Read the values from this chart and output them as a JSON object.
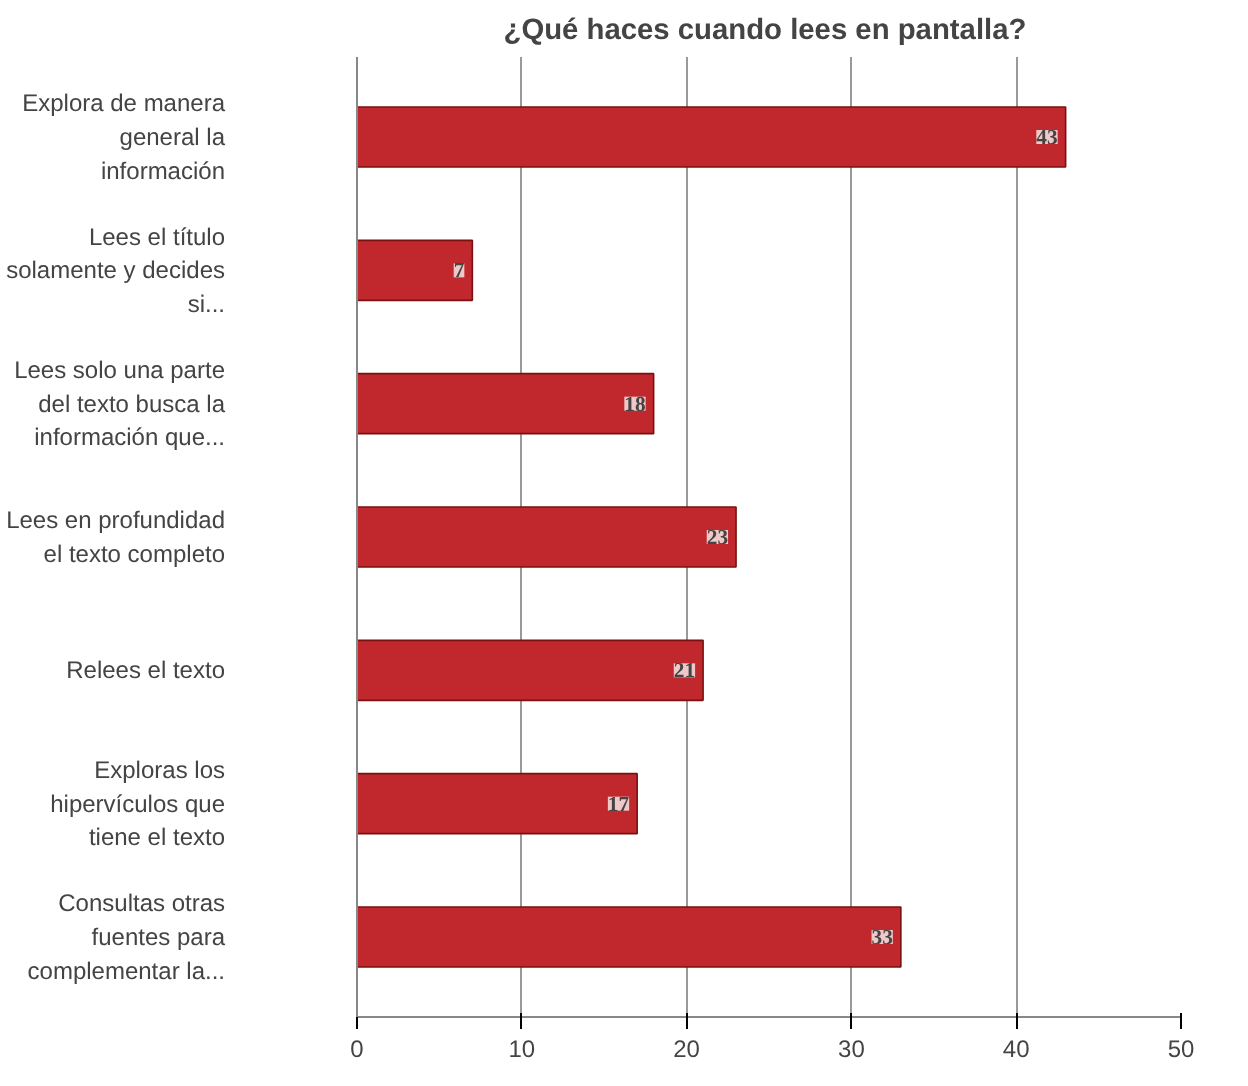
{
  "chart_data": {
    "type": "bar",
    "orientation": "horizontal",
    "title": "¿Qué haces cuando  lees en pantalla?",
    "categories": [
      "Explora de manera general la información",
      "Lees el título solamente y decides si...",
      "Lees solo una parte del texto busca la información que...",
      "Lees en profundidad el texto completo",
      "Relees el texto",
      "Exploras los hipervículos que tiene el texto",
      "Consultas otras fuentes para complementar la..."
    ],
    "values": [
      43,
      7,
      18,
      23,
      21,
      17,
      33
    ],
    "color": "#c0282d",
    "xlim": [
      0,
      50
    ],
    "xticks": [
      0,
      10,
      20,
      30,
      40,
      50
    ],
    "grid": "x",
    "data_labels": true
  }
}
